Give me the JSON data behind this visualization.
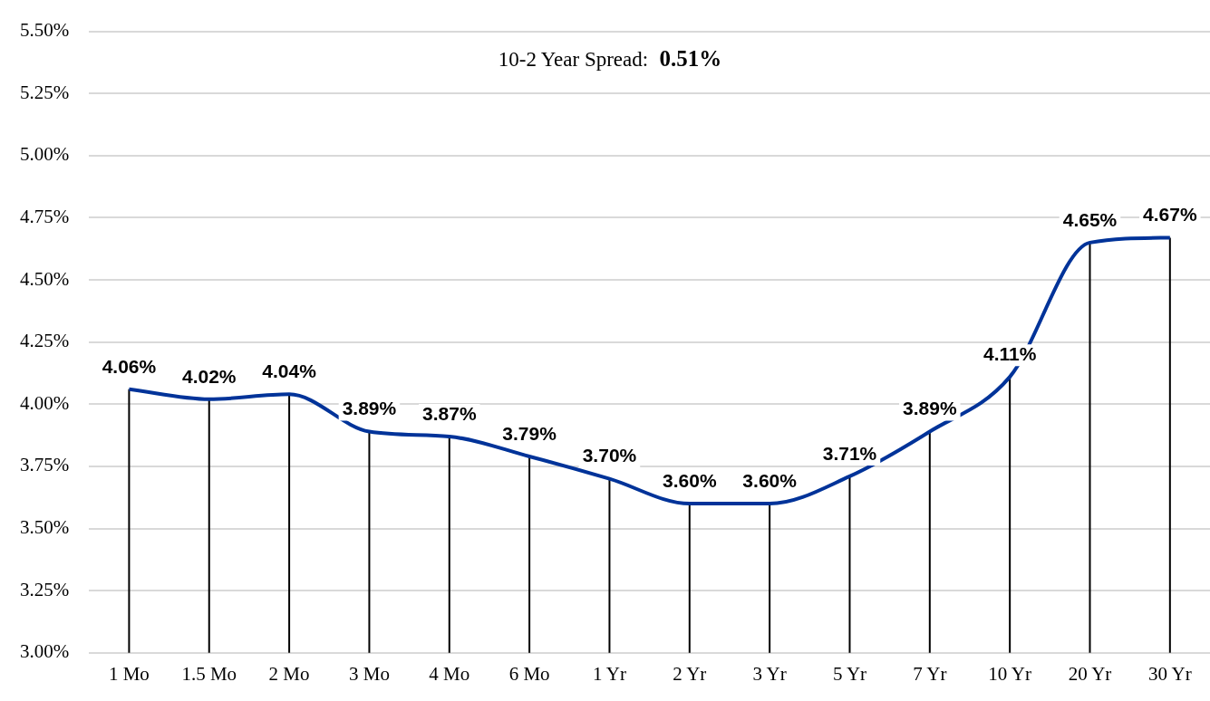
{
  "chart_data": {
    "type": "line",
    "categories": [
      "1 Mo",
      "1.5 Mo",
      "2 Mo",
      "3 Mo",
      "4 Mo",
      "6 Mo",
      "1 Yr",
      "2 Yr",
      "3 Yr",
      "5 Yr",
      "7 Yr",
      "10 Yr",
      "20 Yr",
      "30 Yr"
    ],
    "series": [
      {
        "color": "#003399",
        "values": [
          4.06,
          4.02,
          4.04,
          3.89,
          3.87,
          3.79,
          3.7,
          3.6,
          3.6,
          3.71,
          3.89,
          4.11,
          4.65,
          4.67
        ]
      }
    ],
    "ylim": [
      3,
      5.5
    ],
    "yticks": [
      {
        "value": 3,
        "label": "3.00%"
      },
      {
        "value": 3.25,
        "label": "3.25%"
      },
      {
        "value": 3.5,
        "label": "3.50%"
      },
      {
        "value": 3.75,
        "label": "3.75%"
      },
      {
        "value": 4,
        "label": "4.00%"
      },
      {
        "value": 4.25,
        "label": "4.25%"
      },
      {
        "value": 4.5,
        "label": "4.50%"
      },
      {
        "value": 4.75,
        "label": "4.75%"
      },
      {
        "value": 5,
        "label": "5.00%"
      },
      {
        "value": 5.25,
        "label": "5.25%"
      },
      {
        "value": 5.5,
        "label": "5.50%"
      }
    ],
    "value_labels": [
      [
        "4.06%",
        "4.02%",
        "4.04%",
        "3.89%",
        "3.87%",
        "3.79%",
        "3.70%",
        "3.60%",
        "3.60%",
        "3.71%",
        "3.89%",
        "4.11%",
        "4.65%",
        "4.67%"
      ]
    ],
    "annotations": [
      "10-2 Year Spread: 0.51%"
    ],
    "grid": "y",
    "legend": false,
    "marker": "none",
    "line_style": "solid"
  }
}
